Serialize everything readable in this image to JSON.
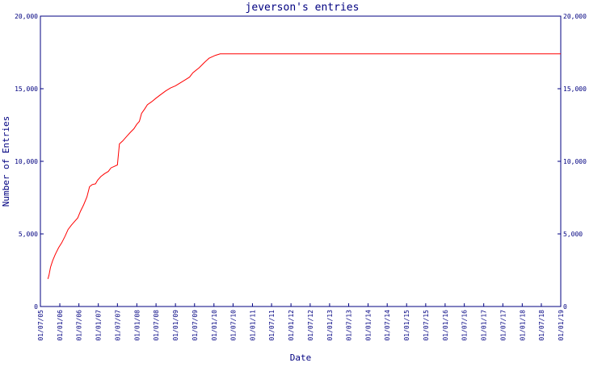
{
  "chart_data": {
    "type": "line",
    "title": "jeverson's entries",
    "xlabel": "Date",
    "ylabel": "Number of Entries",
    "x_axis": {
      "type": "date",
      "range": [
        "2005-07-01",
        "2019-01-01"
      ]
    },
    "y_axis": {
      "min": 0,
      "max": 20000,
      "ticks": [
        0,
        5000,
        10000,
        15000,
        20000
      ]
    },
    "y_tick_labels": [
      "0",
      "5,000",
      "10,000",
      "15,000",
      "20,000"
    ],
    "x_ticks": [
      {
        "date": "2005-07-01",
        "label": "01/07/05"
      },
      {
        "date": "2006-01-01",
        "label": "01/01/06"
      },
      {
        "date": "2006-07-01",
        "label": "01/07/06"
      },
      {
        "date": "2007-01-01",
        "label": "01/01/07"
      },
      {
        "date": "2007-07-01",
        "label": "01/07/07"
      },
      {
        "date": "2008-01-01",
        "label": "01/01/08"
      },
      {
        "date": "2008-07-01",
        "label": "01/07/08"
      },
      {
        "date": "2009-01-01",
        "label": "01/01/09"
      },
      {
        "date": "2009-07-01",
        "label": "01/07/09"
      },
      {
        "date": "2010-01-01",
        "label": "01/01/10"
      },
      {
        "date": "2010-07-01",
        "label": "01/07/10"
      },
      {
        "date": "2011-01-01",
        "label": "01/01/11"
      },
      {
        "date": "2011-07-01",
        "label": "01/07/11"
      },
      {
        "date": "2012-01-01",
        "label": "01/01/12"
      },
      {
        "date": "2012-07-01",
        "label": "01/07/12"
      },
      {
        "date": "2013-01-01",
        "label": "01/01/13"
      },
      {
        "date": "2013-07-01",
        "label": "01/07/13"
      },
      {
        "date": "2014-01-01",
        "label": "01/01/14"
      },
      {
        "date": "2014-07-01",
        "label": "01/07/14"
      },
      {
        "date": "2015-01-01",
        "label": "01/01/15"
      },
      {
        "date": "2015-07-01",
        "label": "01/07/15"
      },
      {
        "date": "2016-01-01",
        "label": "01/01/16"
      },
      {
        "date": "2016-07-01",
        "label": "01/07/16"
      },
      {
        "date": "2017-01-01",
        "label": "01/01/17"
      },
      {
        "date": "2017-07-01",
        "label": "01/07/17"
      },
      {
        "date": "2018-01-01",
        "label": "01/01/18"
      },
      {
        "date": "2018-07-01",
        "label": "01/07/18"
      },
      {
        "date": "2019-01-01",
        "label": "01/01/19"
      }
    ],
    "grid": false,
    "legend": "none",
    "series": [
      {
        "color": "#ff0000",
        "points": [
          [
            "2005-09-10",
            1900
          ],
          [
            "2005-09-20",
            2150
          ],
          [
            "2005-10-05",
            2700
          ],
          [
            "2005-10-25",
            3150
          ],
          [
            "2005-11-20",
            3600
          ],
          [
            "2005-12-20",
            4050
          ],
          [
            "2006-01-20",
            4400
          ],
          [
            "2006-02-20",
            4850
          ],
          [
            "2006-03-20",
            5300
          ],
          [
            "2006-04-20",
            5600
          ],
          [
            "2006-05-20",
            5850
          ],
          [
            "2006-06-20",
            6100
          ],
          [
            "2006-07-15",
            6550
          ],
          [
            "2006-08-15",
            7000
          ],
          [
            "2006-09-15",
            7550
          ],
          [
            "2006-10-10",
            8250
          ],
          [
            "2006-11-05",
            8400
          ],
          [
            "2006-12-05",
            8450
          ],
          [
            "2006-12-25",
            8700
          ],
          [
            "2007-01-25",
            8950
          ],
          [
            "2007-03-01",
            9150
          ],
          [
            "2007-04-05",
            9300
          ],
          [
            "2007-05-01",
            9550
          ],
          [
            "2007-06-01",
            9650
          ],
          [
            "2007-07-01",
            9750
          ],
          [
            "2007-07-20",
            11200
          ],
          [
            "2007-08-20",
            11400
          ],
          [
            "2007-09-25",
            11700
          ],
          [
            "2007-11-01",
            12000
          ],
          [
            "2007-12-05",
            12250
          ],
          [
            "2008-01-01",
            12550
          ],
          [
            "2008-01-25",
            12750
          ],
          [
            "2008-02-15",
            13300
          ],
          [
            "2008-03-15",
            13600
          ],
          [
            "2008-04-10",
            13900
          ],
          [
            "2008-05-20",
            14100
          ],
          [
            "2008-07-01",
            14350
          ],
          [
            "2008-08-15",
            14600
          ],
          [
            "2008-10-01",
            14850
          ],
          [
            "2008-11-15",
            15050
          ],
          [
            "2009-01-01",
            15200
          ],
          [
            "2009-02-15",
            15400
          ],
          [
            "2009-04-01",
            15600
          ],
          [
            "2009-05-15",
            15800
          ],
          [
            "2009-06-15",
            16100
          ],
          [
            "2009-08-15",
            16450
          ],
          [
            "2009-10-01",
            16800
          ],
          [
            "2009-11-15",
            17100
          ],
          [
            "2010-01-15",
            17300
          ],
          [
            "2010-03-01",
            17400
          ],
          [
            "2019-01-01",
            17400
          ]
        ]
      }
    ]
  }
}
